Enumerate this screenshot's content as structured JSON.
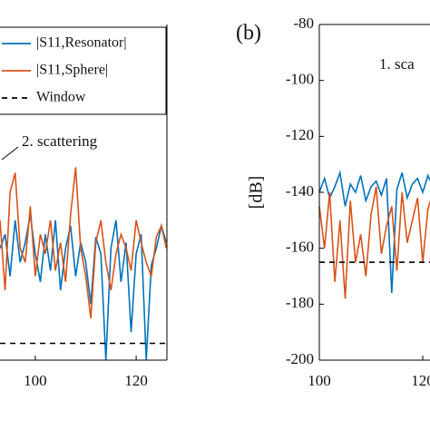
{
  "chart_data": [
    {
      "type": "line",
      "annotation": "2. scattering",
      "x": [
        93,
        94,
        95,
        96,
        97,
        98,
        99,
        100,
        101,
        102,
        103,
        104,
        105,
        106,
        107,
        108,
        109,
        110,
        111,
        112,
        113,
        114,
        115,
        116,
        117,
        118,
        119,
        120,
        121,
        122,
        123,
        124,
        125,
        126
      ],
      "series": [
        {
          "name": "|S11,Resonator|",
          "color": "#0072bd",
          "values": [
            -160,
            -155,
            -170,
            -150,
            -165,
            -158,
            -148,
            -162,
            -172,
            -155,
            -168,
            -150,
            -175,
            -160,
            -152,
            -170,
            -158,
            -165,
            -180,
            -156,
            -162,
            -200,
            -160,
            -150,
            -172,
            -158,
            -190,
            -162,
            -155,
            -200,
            -166,
            -160,
            -152,
            -158
          ]
        },
        {
          "name": "|S11,Sphere|",
          "color": "#d95319",
          "values": [
            -150,
            -175,
            -140,
            -133,
            -160,
            -165,
            -145,
            -170,
            -155,
            -162,
            -150,
            -168,
            -158,
            -172,
            -148,
            -131,
            -160,
            -170,
            -185,
            -158,
            -150,
            -165,
            -175,
            -162,
            -155,
            -160,
            -168,
            -150,
            -158,
            -165,
            -170,
            -156,
            -152,
            -160
          ]
        }
      ],
      "window": {
        "name": "Window",
        "value": -194
      },
      "xlim": [
        93,
        126.1
      ],
      "xticks": [
        100,
        120
      ],
      "ylim": [
        -200,
        -80
      ]
    },
    {
      "type": "line",
      "panel_label": "(b)",
      "annotation": "1. sca",
      "y_label": "[dB]",
      "x": [
        100,
        101,
        102,
        103,
        104,
        105,
        106,
        107,
        108,
        109,
        110,
        111,
        112,
        113,
        114,
        115,
        116,
        117,
        118,
        119,
        120,
        121,
        122
      ],
      "series": [
        {
          "name": "|S11,Resonator|",
          "color": "#0072bd",
          "values": [
            -140,
            -135,
            -142,
            -138,
            -133,
            -145,
            -137,
            -140,
            -134,
            -143,
            -138,
            -136,
            -141,
            -135,
            -176,
            -139,
            -133,
            -142,
            -137,
            -135,
            -140,
            -134,
            -138
          ]
        },
        {
          "name": "|S11,Sphere|",
          "color": "#d95319",
          "values": [
            -145,
            -160,
            -140,
            -172,
            -150,
            -178,
            -143,
            -165,
            -155,
            -170,
            -148,
            -138,
            -162,
            -152,
            -145,
            -168,
            -140,
            -158,
            -150,
            -142,
            -165,
            -146,
            -140
          ]
        }
      ],
      "window": {
        "value": -165
      },
      "xlim": [
        100,
        130
      ],
      "xticks": [
        100,
        120
      ],
      "ylim": [
        -200,
        -80
      ],
      "yticks": [
        -80,
        -100,
        -120,
        -140,
        -160,
        -180,
        -200
      ]
    }
  ]
}
